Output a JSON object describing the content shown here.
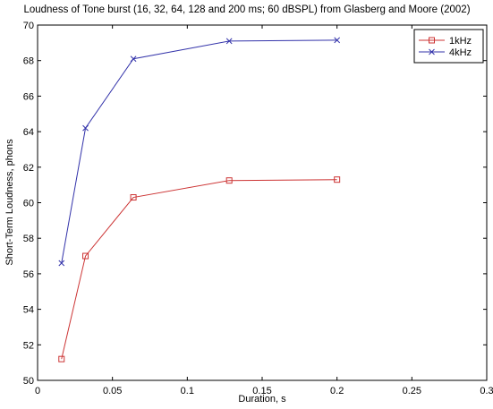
{
  "chart_data": {
    "type": "line",
    "title": "Loudness of Tone burst (16, 32, 64, 128 and 200 ms; 60 dBSPL) from Glasberg and Moore (2002)",
    "xlabel": "Duration, s",
    "ylabel": "Short-Term Loudness, phons",
    "xlim": [
      0,
      0.3
    ],
    "ylim": [
      50,
      70
    ],
    "xticks": [
      "0",
      "0.05",
      "0.1",
      "0.15",
      "0.2",
      "0.25",
      "0.3"
    ],
    "yticks": [
      "50",
      "52",
      "54",
      "56",
      "58",
      "60",
      "62",
      "64",
      "66",
      "68",
      "70"
    ],
    "grid": false,
    "legend_position": "top-right",
    "x": [
      0.016,
      0.032,
      0.064,
      0.128,
      0.2
    ],
    "series": [
      {
        "name": "1kHz",
        "color": "#cc3333",
        "marker": "square",
        "values": [
          51.2,
          57.0,
          60.3,
          61.25,
          61.3
        ]
      },
      {
        "name": "4kHz",
        "color": "#3333aa",
        "marker": "x",
        "values": [
          56.6,
          64.2,
          68.1,
          69.1,
          69.15
        ]
      }
    ]
  }
}
